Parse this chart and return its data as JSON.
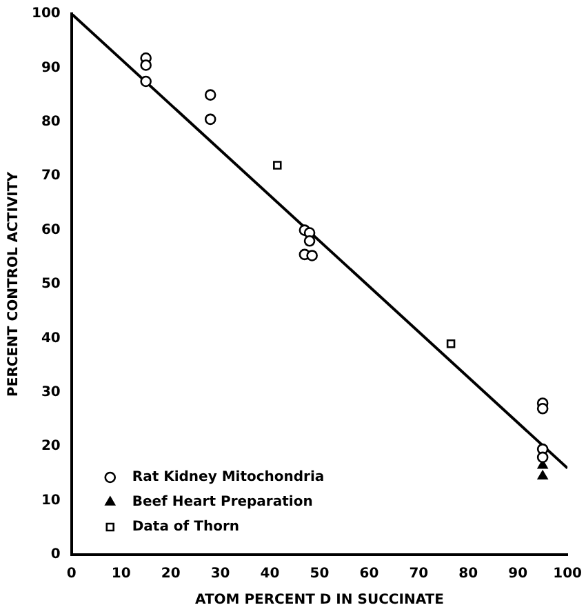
{
  "chart_data": {
    "type": "scatter",
    "xlabel": "ATOM PERCENT D IN SUCCINATE",
    "ylabel": "PERCENT CONTROL ACTIVITY",
    "xlim": [
      0,
      100
    ],
    "ylim": [
      0,
      100
    ],
    "xticks": [
      0,
      10,
      20,
      30,
      40,
      50,
      60,
      70,
      80,
      90,
      100
    ],
    "yticks": [
      0,
      10,
      20,
      30,
      40,
      50,
      60,
      70,
      80,
      90,
      100
    ],
    "grid": false,
    "legend": "bottom left",
    "series": [
      {
        "name": "Rat Kidney Mitochondria",
        "color": "#000000",
        "marker": "circle",
        "x": [
          15,
          15,
          15,
          28,
          28,
          47,
          47,
          48,
          48,
          48.5,
          95,
          95,
          95,
          95
        ],
        "values": [
          91.8,
          90.5,
          87.5,
          85,
          80.5,
          60,
          55.5,
          59.5,
          58,
          55.3,
          28,
          27,
          19.5,
          18
        ]
      },
      {
        "name": "Beef Heart Preparation",
        "color": "#000000",
        "marker": "triangle",
        "x": [
          95,
          95
        ],
        "values": [
          16.5,
          14.5
        ]
      },
      {
        "name": "Data of Thorn",
        "color": "#000000",
        "marker": "square",
        "x": [
          41.5,
          76.5
        ],
        "values": [
          72,
          39
        ]
      },
      {
        "type": "line",
        "color": "#000000",
        "marker": "none",
        "x": [
          0,
          100
        ],
        "values": [
          100,
          16
        ]
      }
    ]
  }
}
